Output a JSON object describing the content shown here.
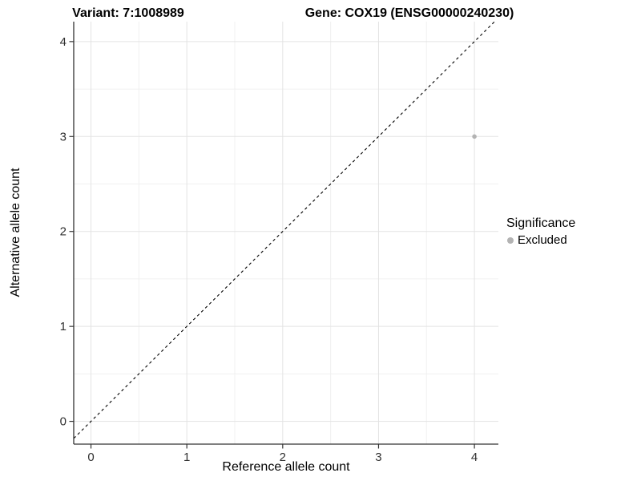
{
  "header": {
    "title_left": "Variant: 7:1008989",
    "title_right": "Gene: COX19 (ENSG00000240230)"
  },
  "chart_data": {
    "type": "scatter",
    "title": "Variant: 7:1008989 / Gene: COX19 (ENSG00000240230)",
    "xlabel": "Reference allele count",
    "ylabel": "Alternative allele count",
    "xlim": [
      -0.18,
      4.25
    ],
    "ylim": [
      -0.24,
      4.21
    ],
    "xticks": [
      0,
      1,
      2,
      3,
      4
    ],
    "yticks": [
      0,
      1,
      2,
      3,
      4
    ],
    "minor_gridlines_x": [
      0.5,
      1.5,
      2.5,
      3.5
    ],
    "minor_gridlines_y": [
      0.5,
      1.5,
      2.5,
      3.5
    ],
    "grid": true,
    "series": [
      {
        "name": "Excluded",
        "color": "#b3b3b3",
        "points": [
          {
            "x": 4,
            "y": 3
          }
        ]
      }
    ],
    "identity_line": {
      "equation": "y = x",
      "style": "dashed",
      "color": "#000000"
    },
    "legend": {
      "title": "Significance",
      "position": "right",
      "items": [
        {
          "label": "Excluded",
          "color": "#b3b3b3"
        }
      ]
    },
    "colors": {
      "grid_major": "#e3e3e3",
      "grid_minor": "#f0f0f0",
      "axis_line": "#333333",
      "tick_text": "#303030",
      "point": "#b3b3b3"
    }
  }
}
